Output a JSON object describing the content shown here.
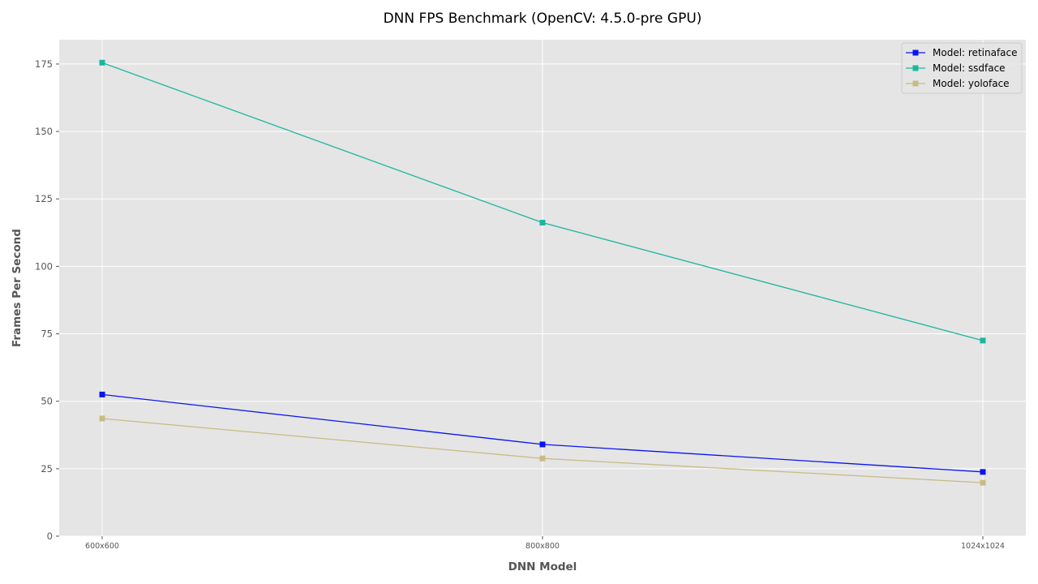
{
  "chart_data": {
    "type": "line",
    "title": "DNN FPS Benchmark (OpenCV: 4.5.0-pre GPU)",
    "xlabel": "DNN Model",
    "ylabel": "Frames Per Second",
    "categories": [
      "600x600",
      "800x800",
      "1024x1024"
    ],
    "ylim": [
      0,
      184
    ],
    "yticks": [
      0,
      25,
      50,
      75,
      100,
      125,
      150,
      175
    ],
    "grid": true,
    "legend_position": "top-right",
    "background": "#e5e5e5",
    "marker": "square",
    "series": [
      {
        "name": "Model: retinaface",
        "color": "#0a14f0",
        "values": [
          52.5,
          34.0,
          23.8
        ]
      },
      {
        "name": "Model: ssdface",
        "color": "#1ab79f",
        "values": [
          175.5,
          116.2,
          72.5
        ]
      },
      {
        "name": "Model: yoloface",
        "color": "#c9bb85",
        "values": [
          43.6,
          28.8,
          19.8
        ]
      }
    ]
  }
}
